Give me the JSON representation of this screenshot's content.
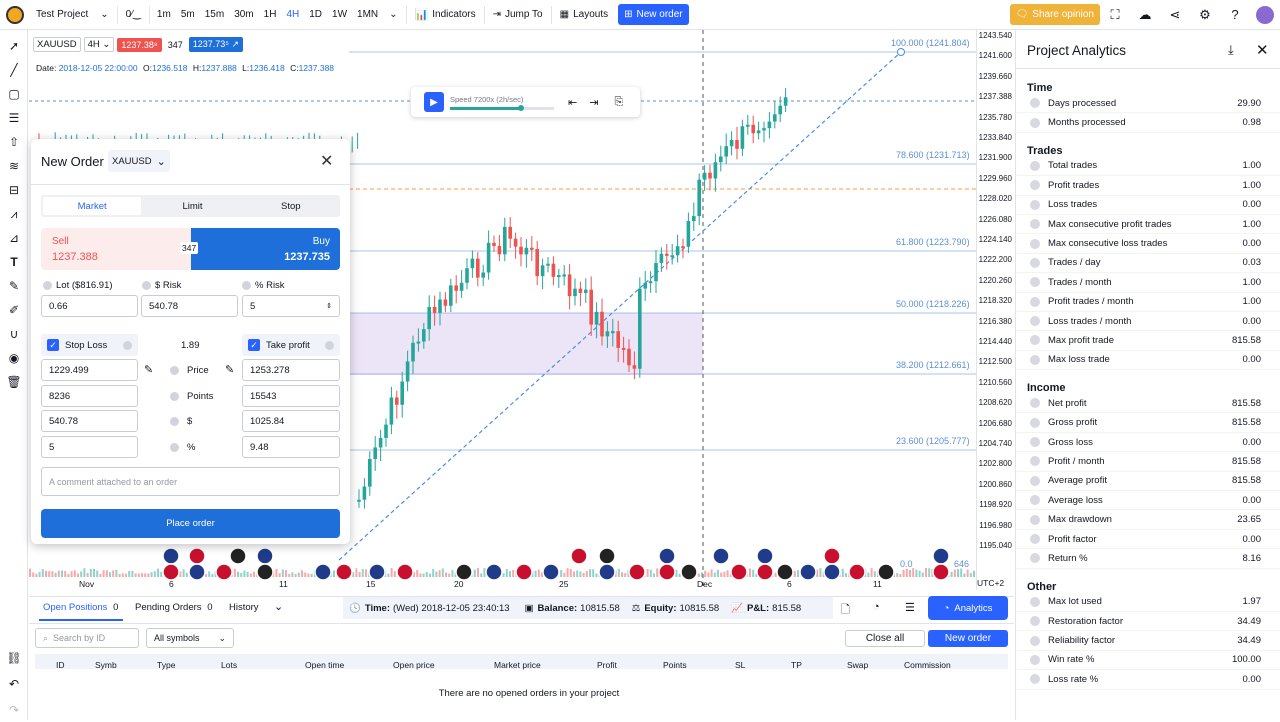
{
  "topbar": {
    "project": "Test Project",
    "timeframes": [
      "1m",
      "5m",
      "15m",
      "30m",
      "1H",
      "4H",
      "1D",
      "1W",
      "1MN"
    ],
    "active_tf": "4H",
    "indicators": "Indicators",
    "jump_to": "Jump To",
    "layouts": "Layouts",
    "new_order": "New order",
    "share_opinion": "Share opinion"
  },
  "chart": {
    "symbol": "XAUUSD",
    "interval": "4H",
    "sell_price": "1237.38⁸",
    "spread": "347",
    "buy_price": "1237.73⁵",
    "ohlc_date_label": "Date:",
    "ohlc_date": "2018-12-05 22:00:00",
    "o_label": "O:",
    "o": "1236.518",
    "h_label": "H:",
    "h": "1237.888",
    "l_label": "L:",
    "l": "1236.418",
    "c_label": "C:",
    "c": "1237.388",
    "speed": "Speed 7200x (2h/sec)",
    "fib_levels": [
      "100.000 (1241.804)",
      "78.600 (1231.713)",
      "61.800 (1223.790)",
      "50.000 (1218.226)",
      "38.200 (1212.661)",
      "23.600 (1205.777)",
      "0.0"
    ],
    "fib_tail": "646",
    "price_labels": [
      "1243.540",
      "1241.600",
      "1239.660",
      "1237.388",
      "1235.780",
      "1233.840",
      "1231.900",
      "1229.960",
      "1228.020",
      "1226.080",
      "1224.140",
      "1222.200",
      "1220.260",
      "1218.320",
      "1216.380",
      "1214.440",
      "1212.500",
      "1210.560",
      "1208.620",
      "1206.680",
      "1204.740",
      "1202.800",
      "1200.860",
      "1198.920",
      "1196.980",
      "1195.040"
    ],
    "current_price": "1237.38",
    "time_labels": [
      "Nov",
      "6",
      "11",
      "15",
      "20",
      "25",
      "Dec",
      "6",
      "11"
    ],
    "timezone": "UTC+2"
  },
  "order": {
    "title": "New Order",
    "symbol": "XAUUSD",
    "tabs": [
      "Market",
      "Limit",
      "Stop"
    ],
    "sell_label": "Sell",
    "sell_price": "1237.388",
    "spread": "347",
    "buy_label": "Buy",
    "buy_price": "1237.735",
    "lot_label": "Lot ($816.91)",
    "risk_label": "$ Risk",
    "pct_risk_label": "% Risk",
    "lot": "0.66",
    "risk": "540.78",
    "pct_risk": "5",
    "stop_loss_label": "Stop Loss",
    "ratio": "1.89",
    "take_profit_label": "Take profit",
    "sl_price": "1229.499",
    "price_label": "Price",
    "tp_price": "1253.278",
    "sl_points": "8236",
    "points_label": "Points",
    "tp_points": "15543",
    "sl_dollar": "540.78",
    "dollar_label": "$",
    "tp_dollar": "1025.84",
    "sl_pct": "5",
    "pct_label": "%",
    "tp_pct": "9.48",
    "comment_placeholder": "A comment attached to an order",
    "place_order": "Place order"
  },
  "bottom": {
    "tabs": [
      {
        "label": "Open Positions",
        "count": "0"
      },
      {
        "label": "Pending Orders",
        "count": "0"
      },
      {
        "label": "History",
        "count": ""
      }
    ],
    "time_label": "Time:",
    "time": "(Wed) 2018-12-05 23:40:13",
    "balance_label": "Balance:",
    "balance": "10815.58",
    "equity_label": "Equity:",
    "equity": "10815.58",
    "pl_label": "P&L:",
    "pl": "815.58",
    "analytics": "Analytics",
    "search_placeholder": "Search by ID",
    "symbols_select": "All symbols",
    "close_all": "Close all",
    "new_order": "New order",
    "columns": [
      "ID",
      "Symb",
      "Type",
      "Lots",
      "Open time",
      "Open price",
      "Market price",
      "Profit",
      "Points",
      "SL",
      "TP",
      "Swap",
      "Commission"
    ],
    "empty": "There are no opened orders in your project"
  },
  "analytics": {
    "title": "Project Analytics",
    "sections": [
      {
        "title": "Time",
        "rows": [
          [
            "Days processed",
            "29.90"
          ],
          [
            "Months processed",
            "0.98"
          ]
        ]
      },
      {
        "title": "Trades",
        "rows": [
          [
            "Total trades",
            "1.00"
          ],
          [
            "Profit trades",
            "1.00"
          ],
          [
            "Loss trades",
            "0.00"
          ],
          [
            "Max consecutive profit trades",
            "1.00"
          ],
          [
            "Max consecutive loss trades",
            "0.00"
          ],
          [
            "Trades / day",
            "0.03"
          ],
          [
            "Trades / month",
            "1.00"
          ],
          [
            "Profit trades / month",
            "1.00"
          ],
          [
            "Loss trades / month",
            "0.00"
          ],
          [
            "Max profit trade",
            "815.58"
          ],
          [
            "Max loss trade",
            "0.00"
          ]
        ]
      },
      {
        "title": "Income",
        "rows": [
          [
            "Net profit",
            "815.58"
          ],
          [
            "Gross profit",
            "815.58"
          ],
          [
            "Gross loss",
            "0.00"
          ],
          [
            "Profit / month",
            "815.58"
          ],
          [
            "Average profit",
            "815.58"
          ],
          [
            "Average loss",
            "0.00"
          ],
          [
            "Max drawdown",
            "23.65"
          ],
          [
            "Profit factor",
            "0.00"
          ],
          [
            "Return %",
            "8.16"
          ]
        ]
      },
      {
        "title": "Other",
        "rows": [
          [
            "Max lot used",
            "1.97"
          ],
          [
            "Restoration factor",
            "34.49"
          ],
          [
            "Reliability factor",
            "34.49"
          ],
          [
            "Win rate %",
            "100.00"
          ],
          [
            "Loss rate %",
            "0.00"
          ]
        ]
      }
    ]
  },
  "colors": {
    "accent": "#2962ff",
    "sell": "#ef5350",
    "buy": "#1e6fd9",
    "up": "#26a69a",
    "down": "#ef5350",
    "share": "#f0b33a"
  }
}
